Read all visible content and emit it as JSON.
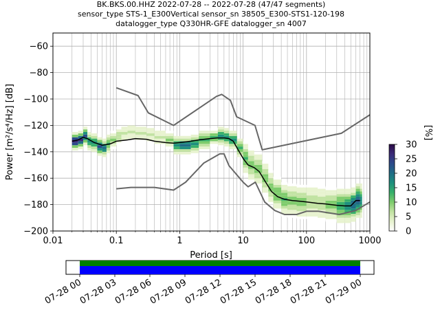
{
  "chart_data": {
    "type": "heatmap",
    "title_lines": [
      "BK.BKS.00.HHZ   2022-07-28 -- 2022-07-28  (47/47 segments)",
      "sensor_type STS-1_E300Vertical sensor_sn 38505_E300-STS1-120-198",
      "datalogger_type Q330HR-GFE datalogger_sn 4007"
    ],
    "xlabel": "Period [s]",
    "ylabel": "Power [m²/s⁴/Hz] [dB]",
    "xscale": "log",
    "xlim": [
      0.01,
      1000
    ],
    "ylim": [
      -200,
      -50
    ],
    "grid": true,
    "x_ticks": [
      {
        "value": 0.01,
        "label": "0.01"
      },
      {
        "value": 0.1,
        "label": "0.1"
      },
      {
        "value": 1,
        "label": "1"
      },
      {
        "value": 10,
        "label": "10"
      },
      {
        "value": 100,
        "label": "100"
      },
      {
        "value": 1000,
        "label": "1000"
      }
    ],
    "y_ticks": [
      -60,
      -80,
      -100,
      -120,
      -140,
      -160,
      -180,
      -200
    ],
    "colorbar": {
      "label": "[%]",
      "min": 0,
      "max": 30,
      "ticks": [
        0,
        5,
        10,
        15,
        20,
        25,
        30
      ],
      "colors": [
        "#ffffff",
        "#e8f3d0",
        "#c2e3a3",
        "#7ecc6c",
        "#37b06a",
        "#1d8f7d",
        "#1f6d86",
        "#2b4a8a",
        "#3b2a78",
        "#2a0a45"
      ]
    },
    "nhnm": {
      "period": [
        0.1,
        0.22,
        0.32,
        0.8,
        3.8,
        4.6,
        6.3,
        7.9,
        15.4,
        20,
        354.8,
        1000
      ],
      "db": [
        -91.5,
        -97.4,
        -110.5,
        -120,
        -98,
        -96.5,
        -101,
        -113.5,
        -120,
        -138.5,
        -126,
        -112
      ]
    },
    "nlnm": {
      "period": [
        0.1,
        0.17,
        0.4,
        0.8,
        1.24,
        2.4,
        4.3,
        5,
        6,
        10,
        12,
        15.6,
        21.9,
        31.6,
        45,
        70,
        101,
        154,
        328,
        600,
        1000
      ],
      "db": [
        -168,
        -167,
        -167,
        -169,
        -163,
        -148.5,
        -141.5,
        -141.5,
        -150.5,
        -163,
        -166.5,
        -163,
        -178,
        -184.5,
        -187.5,
        -187.5,
        -185,
        -185,
        -187.5,
        -184.5,
        -178
      ]
    },
    "median": {
      "period": [
        0.02,
        0.025,
        0.03,
        0.035,
        0.045,
        0.06,
        0.08,
        0.1,
        0.15,
        0.2,
        0.3,
        0.4,
        0.6,
        0.8,
        1,
        1.5,
        2,
        3,
        4,
        5,
        6,
        7,
        8,
        10,
        12,
        15,
        18,
        22,
        28,
        35,
        45,
        60,
        80,
        100,
        150,
        200,
        300,
        400,
        500,
        600,
        700
      ],
      "db": [
        -132,
        -131,
        -129,
        -130,
        -133,
        -135,
        -134,
        -132,
        -131,
        -130,
        -130.5,
        -132,
        -133,
        -133.5,
        -133,
        -132,
        -131,
        -130,
        -129.5,
        -129.5,
        -130,
        -132,
        -137,
        -145,
        -150,
        -152,
        -155,
        -162,
        -170,
        -174,
        -176,
        -177,
        -177.5,
        -178,
        -179,
        -179.5,
        -180.5,
        -181,
        -181,
        -177,
        -177
      ]
    },
    "psd_cloud_points": [
      [
        0.02,
        -132,
        28
      ],
      [
        0.025,
        -131,
        25
      ],
      [
        0.03,
        -128,
        22
      ],
      [
        0.035,
        -132,
        15
      ],
      [
        0.04,
        -133,
        18
      ],
      [
        0.05,
        -136,
        22
      ],
      [
        0.06,
        -137,
        20
      ],
      [
        0.07,
        -134,
        14
      ],
      [
        0.08,
        -131,
        10
      ],
      [
        0.1,
        -128,
        8
      ],
      [
        0.12,
        -126,
        6
      ],
      [
        0.15,
        -125,
        5
      ],
      [
        0.2,
        -126,
        5
      ],
      [
        0.3,
        -127,
        5
      ],
      [
        0.4,
        -129,
        6
      ],
      [
        0.6,
        -131,
        10
      ],
      [
        0.8,
        -135,
        16
      ],
      [
        1,
        -135,
        20
      ],
      [
        1.5,
        -134,
        18
      ],
      [
        2,
        -131,
        14
      ],
      [
        3,
        -129,
        12
      ],
      [
        4,
        -128,
        15
      ],
      [
        5,
        -129,
        18
      ],
      [
        6,
        -131,
        16
      ],
      [
        8,
        -137,
        14
      ],
      [
        10,
        -145,
        12
      ],
      [
        12,
        -150,
        10
      ],
      [
        15,
        -153,
        9
      ],
      [
        20,
        -160,
        9
      ],
      [
        25,
        -167,
        10
      ],
      [
        30,
        -172,
        11
      ],
      [
        40,
        -176,
        12
      ],
      [
        50,
        -177,
        10
      ],
      [
        70,
        -178,
        9
      ],
      [
        100,
        -178,
        8
      ],
      [
        150,
        -179,
        8
      ],
      [
        200,
        -180,
        10
      ],
      [
        300,
        -181,
        14
      ],
      [
        400,
        -181,
        18
      ],
      [
        500,
        -180,
        20
      ],
      [
        600,
        -177,
        22
      ],
      [
        700,
        -177,
        18
      ]
    ],
    "line_color": "#666666",
    "median_color": "#000000",
    "timeline": {
      "tick_labels": [
        "07-28 00",
        "07-28 03",
        "07-28 06",
        "07-28 09",
        "07-28 12",
        "07-28 15",
        "07-28 18",
        "07-28 21",
        "07-29 00"
      ],
      "coverage_colors": [
        "#008000",
        "#0000ff"
      ]
    }
  }
}
